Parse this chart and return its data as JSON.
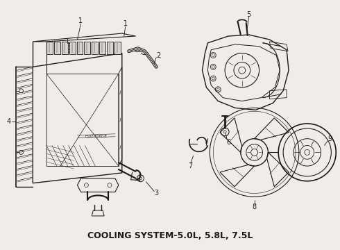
{
  "title": "COOLING SYSTEM-– 5.0L, 5.8L, 7.5L",
  "title_text": "COOLING SYSTEM-5.0L, 5.8L, 7.5L",
  "bg_color": "#f0ede8",
  "fg_color": "#1a1a1a",
  "fig_width": 4.9,
  "fig_height": 3.6,
  "dpi": 100
}
